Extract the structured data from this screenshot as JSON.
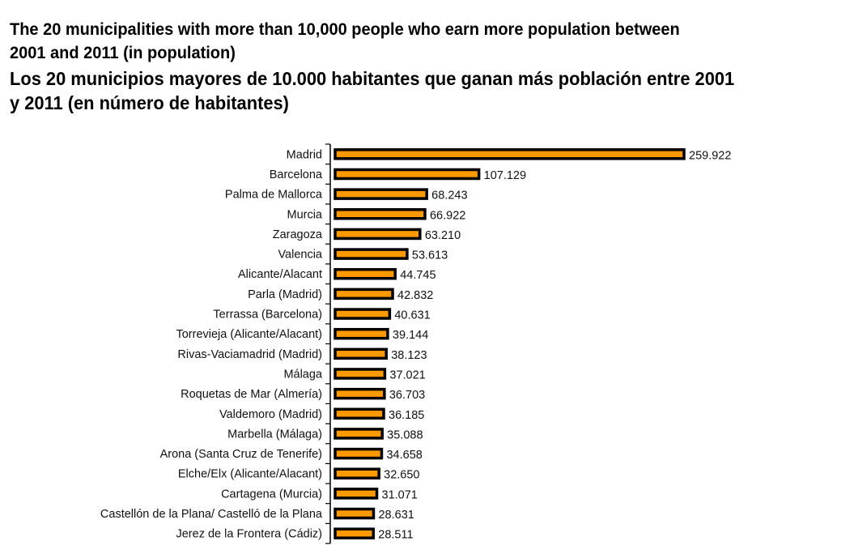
{
  "title_en_line1": "The 20 municipalities with more than 10,000 people who earn more population between",
  "title_en_line2": "2001 and 2011 (in population)",
  "title_es_line1": "Los 20 municipios mayores de 10.000 habitantes que ganan más población entre 2001",
  "title_es_line2": "y 2011 (en número de habitantes)",
  "colors": {
    "bar_fill": "#ff9900",
    "bar_stroke": "#000000",
    "axis": "#000000"
  },
  "chart_data": {
    "type": "bar",
    "orientation": "horizontal",
    "title": "Los 20 municipios mayores de 10.000 habitantes que ganan más población entre 2001 y 2011 (en número de habitantes)",
    "xlabel": "",
    "ylabel": "",
    "xlim": [
      0,
      260000
    ],
    "grid": false,
    "categories": [
      "Madrid",
      "Barcelona",
      "Palma de Mallorca",
      "Murcia",
      "Zaragoza",
      "Valencia",
      "Alicante/Alacant",
      "Parla (Madrid)",
      "Terrassa (Barcelona)",
      "Torrevieja (Alicante/Alacant)",
      "Rivas-Vaciamadrid (Madrid)",
      "Málaga",
      "Roquetas de Mar (Almería)",
      "Valdemoro (Madrid)",
      "Marbella (Málaga)",
      "Arona (Santa Cruz de Tenerife)",
      "Elche/Elx (Alicante/Alacant)",
      "Cartagena (Murcia)",
      "Castellón de la Plana/ Castelló de la Plana",
      "Jerez de la Frontera (Cádiz)"
    ],
    "values": [
      259922,
      107129,
      68243,
      66922,
      63210,
      53613,
      44745,
      42832,
      40631,
      39144,
      38123,
      37021,
      36703,
      36185,
      35088,
      34658,
      32650,
      31071,
      28631,
      28511
    ],
    "value_labels": [
      "259.922",
      "107.129",
      "68.243",
      "66.922",
      "63.210",
      "53.613",
      "44.745",
      "42.832",
      "40.631",
      "39.144",
      "38.123",
      "37.021",
      "36.703",
      "36.185",
      "35.088",
      "34.658",
      "32.650",
      "31.071",
      "28.631",
      "28.511"
    ]
  }
}
